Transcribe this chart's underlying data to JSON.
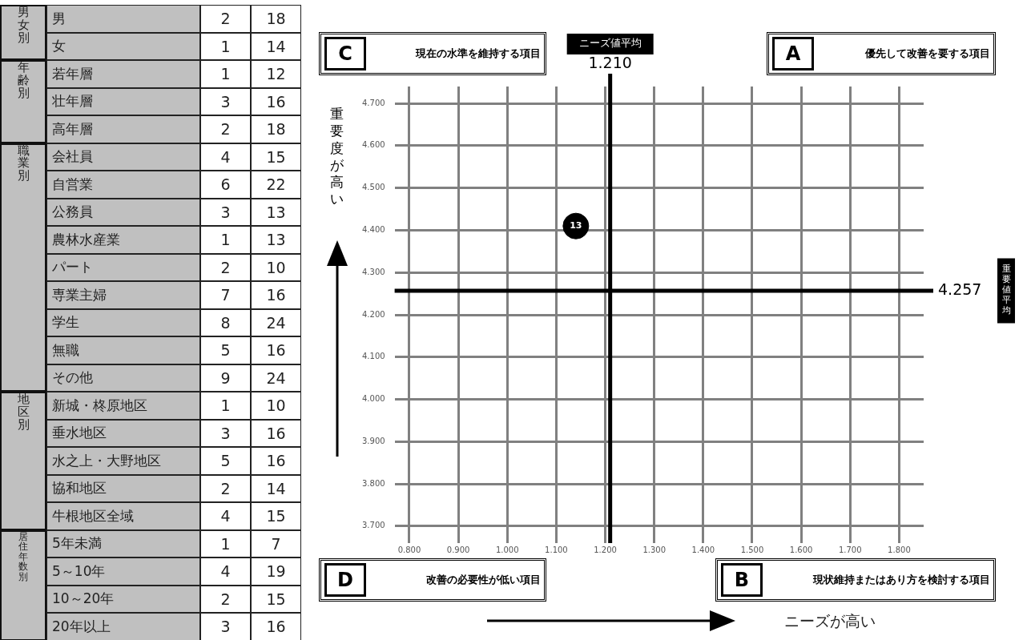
{
  "chart_data": [
    {
      "type": "heatmap",
      "categories": [
        null,
        null
      ],
      "y_categories": [
        "男",
        "女",
        "若年層",
        "壮年層",
        "高年層",
        "会社員",
        "自営業",
        "公務員",
        "農林水産業",
        "パート",
        "専業主婦",
        "学生",
        "無職",
        "その他",
        "新城・柊原地区",
        "垂水地区",
        "水之上・大野地区",
        "協和地区",
        "牛根地区全域",
        "5年未満",
        "5～10年",
        "10～20年",
        "20年以上"
      ],
      "y2_categories": [
        "男女別",
        null,
        "年齢別",
        null,
        null,
        "職業別",
        null,
        null,
        null,
        null,
        null,
        null,
        null,
        null,
        "地区別",
        null,
        null,
        null,
        null,
        "居住年数別",
        null,
        null,
        null
      ],
      "cells": [
        [
          2,
          18
        ],
        [
          1,
          14
        ],
        [
          1,
          12
        ],
        [
          3,
          16
        ],
        [
          2,
          18
        ],
        [
          4,
          15
        ],
        [
          6,
          22
        ],
        [
          3,
          13
        ],
        [
          1,
          13
        ],
        [
          2,
          10
        ],
        [
          7,
          16
        ],
        [
          8,
          24
        ],
        [
          5,
          16
        ],
        [
          9,
          24
        ],
        [
          1,
          10
        ],
        [
          3,
          16
        ],
        [
          5,
          16
        ],
        [
          2,
          14
        ],
        [
          4,
          15
        ],
        [
          1,
          7
        ],
        [
          4,
          19
        ],
        [
          2,
          15
        ],
        [
          3,
          16
        ]
      ],
      "data_labels": true
    },
    {
      "type": "scatter",
      "x": [
        1.14
      ],
      "series": [
        {
          "color": "#000000",
          "values": [
            4.41
          ]
        }
      ],
      "marker": "circle",
      "grid": true,
      "xlim": [
        0.77,
        1.85
      ],
      "ylim": [
        3.66,
        4.74
      ],
      "xticks": [
        {
          "value": 0.8,
          "label": "0.800"
        },
        {
          "value": 0.9,
          "label": "0.900"
        },
        {
          "value": 1.0,
          "label": "1.000"
        },
        {
          "value": 1.1,
          "label": "1.100"
        },
        {
          "value": 1.2,
          "label": "1.200"
        },
        {
          "value": 1.3,
          "label": "1.300"
        },
        {
          "value": 1.4,
          "label": "1.400"
        },
        {
          "value": 1.5,
          "label": "1.500"
        },
        {
          "value": 1.6,
          "label": "1.600"
        },
        {
          "value": 1.7,
          "label": "1.700"
        },
        {
          "value": 1.8,
          "label": "1.800"
        }
      ],
      "yticks": [
        {
          "value": 3.7,
          "label": "3.700"
        },
        {
          "value": 3.8,
          "label": "3.800"
        },
        {
          "value": 3.9,
          "label": "3.900"
        },
        {
          "value": 4.0,
          "label": "4.000"
        },
        {
          "value": 4.1,
          "label": "4.100"
        },
        {
          "value": 4.2,
          "label": "4.200"
        },
        {
          "value": 4.3,
          "label": "4.300"
        },
        {
          "value": 4.4,
          "label": "4.400"
        },
        {
          "value": 4.5,
          "label": "4.500"
        },
        {
          "value": 4.6,
          "label": "4.600"
        },
        {
          "value": 4.7,
          "label": "4.700"
        }
      ],
      "xlabel": "ニーズが高い",
      "ylabel": "重要度が高い",
      "ref_lines": [
        {
          "axis": "x",
          "value": 1.21,
          "label": "1.210",
          "color": "#000000"
        },
        {
          "axis": "y",
          "value": 4.257,
          "label": "4.257",
          "color": "#000000"
        }
      ],
      "annotations": [
        "C",
        "現在の水準を維持する項目",
        "A",
        "優先して改善を要する項目",
        "D",
        "改善の必要性が低い項目",
        "B",
        "現状維持またはあり方を検討する項目",
        "ニーズ値平均",
        "重要値平均",
        {
          "text": "13",
          "x": 1.14,
          "y": 4.41
        }
      ]
    }
  ]
}
